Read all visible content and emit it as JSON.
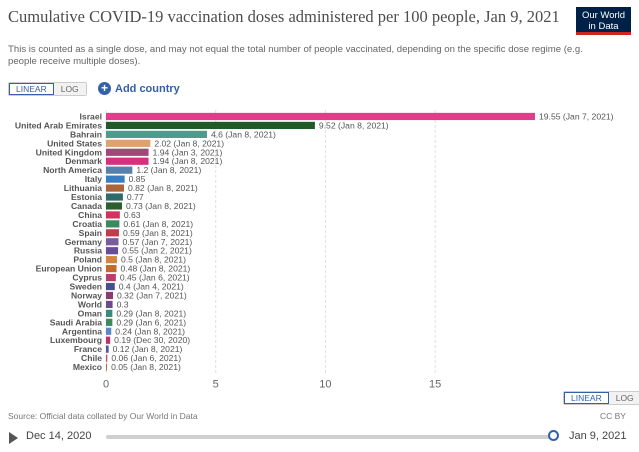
{
  "header": {
    "title": "Cumulative COVID-19 vaccination doses administered per 100 people, Jan 9, 2021",
    "subtitle": "This is counted as a single dose, and may not equal the total number of people vaccinated, depending on the specific dose regime (e.g. people receive multiple doses).",
    "logo_line1": "Our World",
    "logo_line2": "in Data"
  },
  "controls": {
    "linear_label": "LINEAR",
    "log_label": "LOG",
    "add_country_label": "Add country"
  },
  "footer": {
    "source": "Source: Official data collated by Our World in Data",
    "license": "CC BY"
  },
  "timeline": {
    "start": "Dec 14, 2020",
    "end": "Jan 9, 2021"
  },
  "chart_data": {
    "type": "bar",
    "orientation": "horizontal",
    "x_ticks": [
      0,
      5,
      10,
      15
    ],
    "xlim": [
      0,
      19.55
    ],
    "grid": true,
    "bars": [
      {
        "label": "Israel",
        "value": 19.55,
        "annotation": "19.55 (Jan 7, 2021)",
        "color": "#e03e8b"
      },
      {
        "label": "United Arab Emirates",
        "value": 9.52,
        "annotation": "9.52 (Jan 8, 2021)",
        "color": "#1f5a27"
      },
      {
        "label": "Bahrain",
        "value": 4.6,
        "annotation": "4.6 (Jan 8, 2021)",
        "color": "#4e9a8c"
      },
      {
        "label": "United States",
        "value": 2.02,
        "annotation": "2.02 (Jan 8, 2021)",
        "color": "#dca270"
      },
      {
        "label": "United Kingdom",
        "value": 1.94,
        "annotation": "1.94 (Jan 3, 2021)",
        "color": "#9c4a7b"
      },
      {
        "label": "Denmark",
        "value": 1.94,
        "annotation": "1.94 (Jan 8, 2021)",
        "color": "#d6317e"
      },
      {
        "label": "North America",
        "value": 1.2,
        "annotation": "1.2 (Jan 8, 2021)",
        "color": "#5a7fa8"
      },
      {
        "label": "Italy",
        "value": 0.85,
        "annotation": "0.85",
        "color": "#3a7ec2"
      },
      {
        "label": "Lithuania",
        "value": 0.82,
        "annotation": "0.82 (Jan 8, 2021)",
        "color": "#a9653c"
      },
      {
        "label": "Estonia",
        "value": 0.77,
        "annotation": "0.77",
        "color": "#2e6b6b"
      },
      {
        "label": "Canada",
        "value": 0.73,
        "annotation": "0.73 (Jan 8, 2021)",
        "color": "#2d5e2d"
      },
      {
        "label": "China",
        "value": 0.63,
        "annotation": "0.63",
        "color": "#d1335d"
      },
      {
        "label": "Croatia",
        "value": 0.61,
        "annotation": "0.61 (Jan 8, 2021)",
        "color": "#3a8a5e"
      },
      {
        "label": "Spain",
        "value": 0.59,
        "annotation": "0.59 (Jan 8, 2021)",
        "color": "#c23a4c"
      },
      {
        "label": "Germany",
        "value": 0.57,
        "annotation": "0.57 (Jan 7, 2021)",
        "color": "#7a5c9e"
      },
      {
        "label": "Russia",
        "value": 0.55,
        "annotation": "0.55 (Jan 2, 2021)",
        "color": "#6a4a9a"
      },
      {
        "label": "Poland",
        "value": 0.5,
        "annotation": "0.5 (Jan 8, 2021)",
        "color": "#d1863d"
      },
      {
        "label": "European Union",
        "value": 0.48,
        "annotation": "0.48 (Jan 8, 2021)",
        "color": "#c46a2f"
      },
      {
        "label": "Cyprus",
        "value": 0.45,
        "annotation": "0.45 (Jan 6, 2021)",
        "color": "#c23a6b"
      },
      {
        "label": "Sweden",
        "value": 0.4,
        "annotation": "0.4 (Jan 4, 2021)",
        "color": "#46508c"
      },
      {
        "label": "Norway",
        "value": 0.32,
        "annotation": "0.32 (Jan 7, 2021)",
        "color": "#8a3d6b"
      },
      {
        "label": "World",
        "value": 0.3,
        "annotation": "0.3",
        "color": "#6b4a8a"
      },
      {
        "label": "Oman",
        "value": 0.29,
        "annotation": "0.29 (Jan 8, 2021)",
        "color": "#3a8a7e"
      },
      {
        "label": "Saudi Arabia",
        "value": 0.29,
        "annotation": "0.29 (Jan 6, 2021)",
        "color": "#3d8a5a"
      },
      {
        "label": "Argentina",
        "value": 0.24,
        "annotation": "0.24 (Jan 8, 2021)",
        "color": "#5a8ac2"
      },
      {
        "label": "Luxembourg",
        "value": 0.19,
        "annotation": "0.19 (Dec 30, 2020)",
        "color": "#c2306b"
      },
      {
        "label": "France",
        "value": 0.12,
        "annotation": "0.12 (Jan 8, 2021)",
        "color": "#4a5a9a"
      },
      {
        "label": "Chile",
        "value": 0.06,
        "annotation": "0.06 (Jan 6, 2021)",
        "color": "#c24a6b"
      },
      {
        "label": "Mexico",
        "value": 0.05,
        "annotation": "0.05 (Jan 8, 2021)",
        "color": "#a67a3d"
      }
    ]
  }
}
